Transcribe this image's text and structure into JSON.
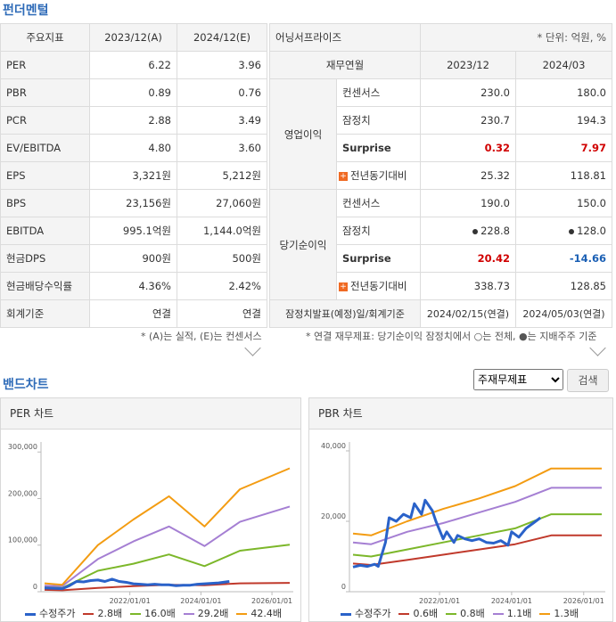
{
  "fundamentals": {
    "title": "펀더멘털",
    "headers": [
      "주요지표",
      "2023/12(A)",
      "2024/12(E)"
    ],
    "rows": [
      [
        "PER",
        "6.22",
        "3.96"
      ],
      [
        "PBR",
        "0.89",
        "0.76"
      ],
      [
        "PCR",
        "2.88",
        "3.49"
      ],
      [
        "EV/EBITDA",
        "4.80",
        "3.60"
      ],
      [
        "EPS",
        "3,321원",
        "5,212원"
      ],
      [
        "BPS",
        "23,156원",
        "27,060원"
      ],
      [
        "EBITDA",
        "995.1억원",
        "1,144.0억원"
      ],
      [
        "현금DPS",
        "900원",
        "500원"
      ],
      [
        "현금배당수익률",
        "4.36%",
        "2.42%"
      ],
      [
        "회계기준",
        "연결",
        "연결"
      ]
    ],
    "note": "* (A)는 실적, (E)는 컨센서스"
  },
  "earnings": {
    "title": "어닝서프라이즈",
    "unit": "* 단위: 억원, %",
    "headers": [
      "재무연월",
      "2023/12",
      "2024/03"
    ],
    "op_label": "영업이익",
    "net_label": "당기순이익",
    "op_rows": [
      {
        "label": "컨센서스",
        "v1": "230.0",
        "v2": "180.0"
      },
      {
        "label": "잠정치",
        "v1": "230.7",
        "v2": "194.3"
      },
      {
        "label": "Surprise",
        "v1": "0.32",
        "v2": "7.97"
      },
      {
        "label": "전년동기대비",
        "v1": "25.32",
        "v2": "118.81"
      }
    ],
    "net_rows": [
      {
        "label": "컨센서스",
        "v1": "190.0",
        "v2": "150.0"
      },
      {
        "label": "잠정치",
        "v1": "228.8",
        "v2": "128.0"
      },
      {
        "label": "Surprise",
        "v1": "20.42",
        "v2": "-14.66"
      },
      {
        "label": "전년동기대비",
        "v1": "338.73",
        "v2": "128.85"
      }
    ],
    "footer": {
      "label": "잠정치발표(예정)일/회계기준",
      "v1": "2024/02/15(연결)",
      "v2": "2024/05/03(연결)"
    },
    "note": "* 연결 재무제표: 당기순이익 잠정치에서 ○는 전체, ●는 지배주주 기준"
  },
  "band": {
    "title": "밴드차트",
    "select_value": "주재무제표",
    "search_label": "검색"
  },
  "chart_data": [
    {
      "type": "line",
      "title": "PER 차트",
      "x_ticks": [
        "2022/01/01",
        "2024/01/01",
        "2026/01/01"
      ],
      "xlim": [
        2019.5,
        2026.6
      ],
      "ylim": [
        0,
        310000
      ],
      "y_ticks": [
        0,
        100000,
        200000,
        300000
      ],
      "y_tick_labels": [
        "0",
        "100,000",
        "200,000",
        "300,000"
      ],
      "series": [
        {
          "name": "수정주가",
          "color": "#2a62c9",
          "width": 3,
          "x": [
            2019.6,
            2019.9,
            2020.1,
            2020.3,
            2020.5,
            2020.7,
            2020.9,
            2021.1,
            2021.3,
            2021.5,
            2021.7,
            2021.9,
            2022.1,
            2022.3,
            2022.5,
            2022.7,
            2022.9,
            2023.1,
            2023.3,
            2023.5,
            2023.7,
            2023.9,
            2024.1,
            2024.3,
            2024.5,
            2024.8
          ],
          "y": [
            8000,
            7000,
            6500,
            13000,
            22000,
            21000,
            24000,
            25000,
            22000,
            27000,
            22000,
            20000,
            17000,
            16000,
            15000,
            16000,
            15000,
            15000,
            13000,
            14000,
            14000,
            16000,
            17000,
            18000,
            19000,
            22000
          ]
        },
        {
          "name": "2.8배",
          "color": "#c0392b",
          "width": 2,
          "x": [
            2019.6,
            2020.1,
            2021.1,
            2022.1,
            2023.1,
            2024.1,
            2025.1,
            2026.5
          ],
          "y": [
            4000,
            3000,
            8000,
            12000,
            15000,
            14000,
            18000,
            19000
          ]
        },
        {
          "name": "16.0배",
          "color": "#7cb72a",
          "width": 2,
          "x": [
            2019.6,
            2020.1,
            2021.1,
            2022.1,
            2023.1,
            2024.1,
            2025.1,
            2026.5
          ],
          "y": [
            11000,
            8000,
            45000,
            60000,
            80000,
            55000,
            88000,
            101000
          ]
        },
        {
          "name": "29.2배",
          "color": "#a57fd3",
          "width": 2,
          "x": [
            2019.6,
            2020.1,
            2021.1,
            2022.1,
            2023.1,
            2024.1,
            2025.1,
            2026.5
          ],
          "y": [
            13000,
            12000,
            70000,
            108000,
            140000,
            98000,
            150000,
            183000
          ]
        },
        {
          "name": "42.4배",
          "color": "#f39c12",
          "width": 2,
          "x": [
            2019.6,
            2020.1,
            2021.1,
            2022.1,
            2023.1,
            2024.1,
            2025.1,
            2026.5
          ],
          "y": [
            18000,
            15000,
            100000,
            155000,
            205000,
            140000,
            220000,
            265000
          ]
        }
      ]
    },
    {
      "type": "line",
      "title": "PBR 차트",
      "x_ticks": [
        "2022/01/01",
        "2024/01/01",
        "2026/01/01"
      ],
      "xlim": [
        2019.5,
        2026.6
      ],
      "ylim": [
        0,
        41000
      ],
      "y_ticks": [
        0,
        20000,
        40000
      ],
      "y_tick_labels": [
        "0",
        "20,000",
        "40,000"
      ],
      "series": [
        {
          "name": "수정주가",
          "color": "#2a62c9",
          "width": 3,
          "x": [
            2019.6,
            2019.8,
            2020.0,
            2020.2,
            2020.3,
            2020.5,
            2020.6,
            2020.8,
            2021.0,
            2021.2,
            2021.3,
            2021.5,
            2021.6,
            2021.8,
            2021.9,
            2022.1,
            2022.2,
            2022.4,
            2022.5,
            2022.7,
            2022.9,
            2023.1,
            2023.3,
            2023.5,
            2023.7,
            2023.9,
            2024.0,
            2024.2,
            2024.4,
            2024.6,
            2024.8
          ],
          "y": [
            7000,
            7500,
            7200,
            7800,
            7200,
            14000,
            21000,
            20000,
            22000,
            21000,
            25000,
            22000,
            26000,
            23000,
            20000,
            15000,
            17000,
            14000,
            16000,
            15000,
            14500,
            15000,
            14000,
            13800,
            14500,
            13200,
            17000,
            15500,
            18000,
            19500,
            21000
          ]
        },
        {
          "name": "0.6배",
          "color": "#c0392b",
          "width": 2,
          "x": [
            2019.6,
            2020.1,
            2021.1,
            2022.1,
            2023.1,
            2024.1,
            2025.1,
            2026.5
          ],
          "y": [
            8000,
            7600,
            9000,
            10500,
            12000,
            13500,
            16000,
            16000
          ]
        },
        {
          "name": "0.8배",
          "color": "#7cb72a",
          "width": 2,
          "x": [
            2019.6,
            2020.1,
            2021.1,
            2022.1,
            2023.1,
            2024.1,
            2025.1,
            2026.5
          ],
          "y": [
            10500,
            10000,
            12000,
            14000,
            16000,
            18000,
            22000,
            22000
          ]
        },
        {
          "name": "1.1배",
          "color": "#a57fd3",
          "width": 2,
          "x": [
            2019.6,
            2020.1,
            2021.1,
            2022.1,
            2023.1,
            2024.1,
            2025.1,
            2026.5
          ],
          "y": [
            14000,
            13500,
            17000,
            19500,
            22500,
            25500,
            29500,
            29500
          ]
        },
        {
          "name": "1.3배",
          "color": "#f39c12",
          "width": 2,
          "x": [
            2019.6,
            2020.1,
            2021.1,
            2022.1,
            2023.1,
            2024.1,
            2025.1,
            2026.5
          ],
          "y": [
            16500,
            16000,
            20000,
            23500,
            26500,
            30000,
            35000,
            35000
          ]
        }
      ]
    }
  ]
}
